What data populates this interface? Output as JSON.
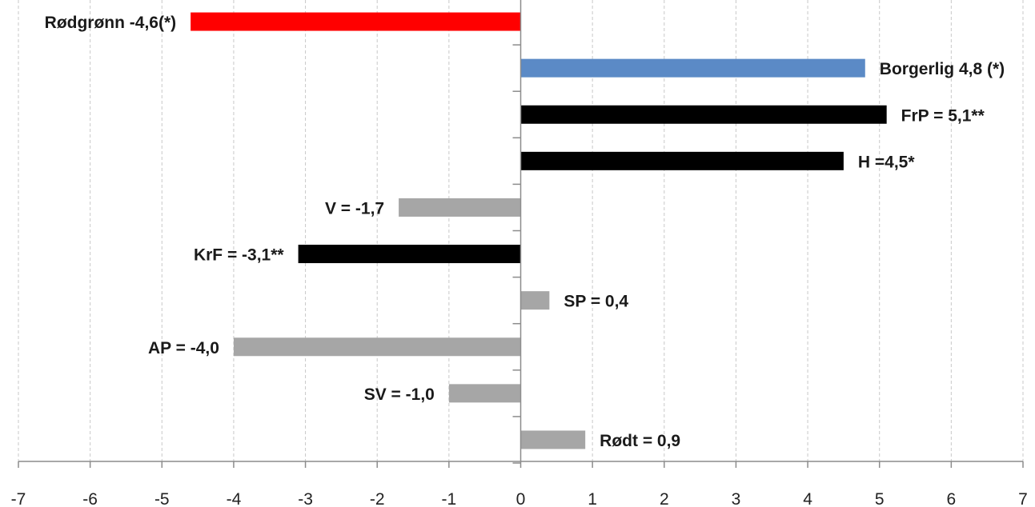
{
  "chart_data": {
    "type": "bar",
    "orientation": "horizontal",
    "xlim": [
      -7,
      7
    ],
    "x_ticks": [
      "-7",
      "-6",
      "-5",
      "-4",
      "-3",
      "-2",
      "-1",
      "0",
      "1",
      "2",
      "3",
      "4",
      "5",
      "6",
      "7"
    ],
    "grid": "vertical dashed",
    "bars": [
      {
        "category": "Rødgrønn",
        "value": -4.6,
        "label": "Rødgrønn -4,6(*)",
        "color": "#ff0000"
      },
      {
        "category": "Borgerlig",
        "value": 4.8,
        "label": "Borgerlig 4,8 (*)",
        "color": "#5b8ac6"
      },
      {
        "category": "FrP",
        "value": 5.1,
        "label": "FrP = 5,1**",
        "color": "#000000"
      },
      {
        "category": "H",
        "value": 4.5,
        "label": "H =4,5*",
        "color": "#000000"
      },
      {
        "category": "V",
        "value": -1.7,
        "label": "V = -1,7",
        "color": "#a6a6a6"
      },
      {
        "category": "KrF",
        "value": -3.1,
        "label": "KrF = -3,1**",
        "color": "#000000"
      },
      {
        "category": "SP",
        "value": 0.4,
        "label": "SP = 0,4",
        "color": "#a6a6a6"
      },
      {
        "category": "AP",
        "value": -4.0,
        "label": "AP = -4,0",
        "color": "#a6a6a6"
      },
      {
        "category": "SV",
        "value": -1.0,
        "label": "SV = -1,0",
        "color": "#a6a6a6"
      },
      {
        "category": "Rødt",
        "value": 0.9,
        "label": "Rødt = 0,9",
        "color": "#a6a6a6"
      }
    ]
  }
}
